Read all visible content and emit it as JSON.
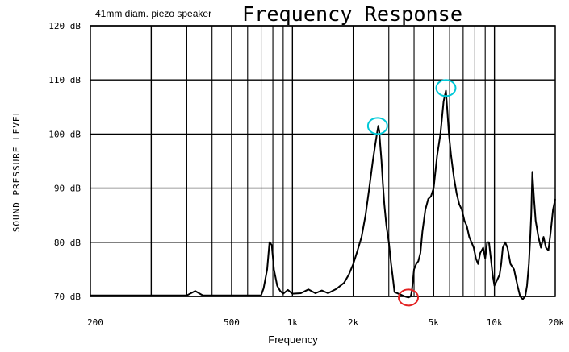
{
  "chart_data": {
    "type": "line",
    "note": "41mm diam. piezo speaker",
    "title": "Frequency Response",
    "xlabel": "Frequency",
    "ylabel": "SOUND PRESSURE LEVEL",
    "x_scale": "log",
    "xlim": [
      100,
      20000
    ],
    "ylim": [
      70,
      120
    ],
    "grid": true,
    "x_ticks": [
      {
        "value": 200,
        "label": "200"
      },
      {
        "value": 500,
        "label": "500"
      },
      {
        "value": 1000,
        "label": "1k"
      },
      {
        "value": 2000,
        "label": "2k"
      },
      {
        "value": 5000,
        "label": "5k"
      },
      {
        "value": 10000,
        "label": "10k"
      },
      {
        "value": 20000,
        "label": "20k"
      }
    ],
    "y_ticks": [
      {
        "value": 120,
        "label": "120 dB"
      },
      {
        "value": 110,
        "label": "110 dB"
      },
      {
        "value": 100,
        "label": "100 dB"
      },
      {
        "value": 90,
        "label": "90 dB"
      },
      {
        "value": 80,
        "label": "80 dB"
      },
      {
        "value": 70,
        "label": "70 dB"
      }
    ],
    "series": [
      {
        "color": "#000000",
        "points": [
          [
            100,
            70.2
          ],
          [
            300,
            70.2
          ],
          [
            330,
            71.0
          ],
          [
            360,
            70.2
          ],
          [
            700,
            70.2
          ],
          [
            720,
            71.5
          ],
          [
            750,
            75
          ],
          [
            770,
            80
          ],
          [
            790,
            79.5
          ],
          [
            810,
            75
          ],
          [
            840,
            72
          ],
          [
            870,
            71
          ],
          [
            900,
            70.5
          ],
          [
            950,
            71.2
          ],
          [
            1000,
            70.5
          ],
          [
            1100,
            70.6
          ],
          [
            1200,
            71.3
          ],
          [
            1300,
            70.6
          ],
          [
            1400,
            71.1
          ],
          [
            1500,
            70.6
          ],
          [
            1650,
            71.4
          ],
          [
            1800,
            72.5
          ],
          [
            1900,
            74
          ],
          [
            2000,
            76
          ],
          [
            2100,
            78.5
          ],
          [
            2200,
            81
          ],
          [
            2300,
            85
          ],
          [
            2400,
            90
          ],
          [
            2500,
            95
          ],
          [
            2570,
            98
          ],
          [
            2620,
            100
          ],
          [
            2660,
            101.5
          ],
          [
            2690,
            100.5
          ],
          [
            2720,
            98
          ],
          [
            2760,
            95
          ],
          [
            2800,
            91
          ],
          [
            2850,
            87
          ],
          [
            2920,
            83
          ],
          [
            3000,
            80
          ],
          [
            3080,
            76
          ],
          [
            3150,
            73
          ],
          [
            3200,
            70.8
          ],
          [
            3400,
            70.4
          ],
          [
            3600,
            70.0
          ],
          [
            3750,
            69.8
          ],
          [
            3850,
            70.0
          ],
          [
            3900,
            71
          ],
          [
            3950,
            73
          ],
          [
            4000,
            75
          ],
          [
            4100,
            76
          ],
          [
            4200,
            76.5
          ],
          [
            4300,
            78
          ],
          [
            4400,
            82
          ],
          [
            4550,
            86
          ],
          [
            4700,
            88
          ],
          [
            4850,
            88.5
          ],
          [
            5000,
            90
          ],
          [
            5200,
            96
          ],
          [
            5400,
            100
          ],
          [
            5600,
            106
          ],
          [
            5750,
            108
          ],
          [
            5850,
            104
          ],
          [
            5950,
            100
          ],
          [
            6100,
            96
          ],
          [
            6300,
            92
          ],
          [
            6500,
            89
          ],
          [
            6700,
            87
          ],
          [
            6900,
            86
          ],
          [
            7100,
            84
          ],
          [
            7300,
            83
          ],
          [
            7500,
            81
          ],
          [
            7700,
            80
          ],
          [
            7900,
            79
          ],
          [
            8100,
            77
          ],
          [
            8300,
            76
          ],
          [
            8500,
            78
          ],
          [
            8800,
            79
          ],
          [
            9000,
            77
          ],
          [
            9200,
            80
          ],
          [
            9400,
            80
          ],
          [
            9600,
            77
          ],
          [
            9800,
            74
          ],
          [
            10000,
            72
          ],
          [
            10300,
            73
          ],
          [
            10600,
            74
          ],
          [
            10800,
            76
          ],
          [
            11000,
            79
          ],
          [
            11300,
            80
          ],
          [
            11600,
            79
          ],
          [
            12000,
            76
          ],
          [
            12500,
            75
          ],
          [
            13000,
            72
          ],
          [
            13400,
            70
          ],
          [
            13800,
            69.5
          ],
          [
            14200,
            70
          ],
          [
            14500,
            72
          ],
          [
            14800,
            76
          ],
          [
            15000,
            80
          ],
          [
            15200,
            85
          ],
          [
            15400,
            93
          ],
          [
            15700,
            88
          ],
          [
            16000,
            84
          ],
          [
            16500,
            81
          ],
          [
            17000,
            79
          ],
          [
            17500,
            81
          ],
          [
            18000,
            79
          ],
          [
            18500,
            78.5
          ],
          [
            19000,
            82
          ],
          [
            19500,
            86
          ],
          [
            20000,
            88
          ]
        ]
      }
    ],
    "annotations": [
      {
        "type": "circle",
        "color": "#00c8d7",
        "x": 2640,
        "y": 101.5
      },
      {
        "type": "circle",
        "color": "#00c8d7",
        "x": 5750,
        "y": 108.5
      },
      {
        "type": "circle",
        "color": "#e32222",
        "x": 3750,
        "y": 69.8
      }
    ]
  }
}
